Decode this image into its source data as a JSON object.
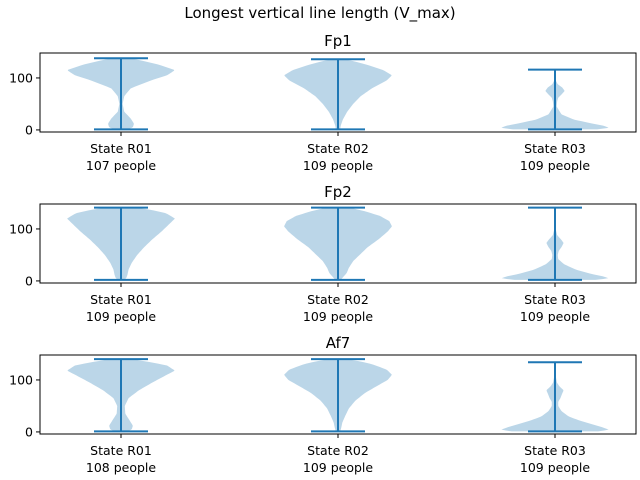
{
  "chart_data": {
    "type": "violin",
    "title": "Longest vertical line length (V_max)",
    "panels": [
      {
        "title": "Fp1",
        "ylim": [
          -4,
          148
        ],
        "yticks": [
          0,
          100
        ],
        "groups": [
          {
            "label": "State R01",
            "count_label": "107 people",
            "min": 1,
            "max": 138,
            "density": [
              [
                1,
                0.12
              ],
              [
                5,
                0.22
              ],
              [
                12,
                0.24
              ],
              [
                22,
                0.18
              ],
              [
                35,
                0.06
              ],
              [
                50,
                0.03
              ],
              [
                65,
                0.06
              ],
              [
                80,
                0.18
              ],
              [
                95,
                0.55
              ],
              [
                105,
                0.85
              ],
              [
                115,
                1.0
              ],
              [
                125,
                0.72
              ],
              [
                133,
                0.4
              ],
              [
                138,
                0.18
              ]
            ]
          },
          {
            "label": "State R02",
            "count_label": "109 people",
            "min": 1,
            "max": 136,
            "density": [
              [
                1,
                0.04
              ],
              [
                8,
                0.05
              ],
              [
                20,
                0.09
              ],
              [
                35,
                0.17
              ],
              [
                50,
                0.28
              ],
              [
                65,
                0.42
              ],
              [
                80,
                0.63
              ],
              [
                95,
                0.9
              ],
              [
                105,
                1.0
              ],
              [
                115,
                0.84
              ],
              [
                125,
                0.55
              ],
              [
                132,
                0.3
              ],
              [
                136,
                0.12
              ]
            ]
          },
          {
            "label": "State R03",
            "count_label": "109 people",
            "min": 1,
            "max": 116,
            "density": [
              [
                1,
                0.78
              ],
              [
                4,
                1.0
              ],
              [
                8,
                0.9
              ],
              [
                13,
                0.65
              ],
              [
                20,
                0.35
              ],
              [
                30,
                0.12
              ],
              [
                45,
                0.03
              ],
              [
                55,
                0.04
              ],
              [
                62,
                0.06
              ],
              [
                68,
                0.12
              ],
              [
                75,
                0.18
              ],
              [
                82,
                0.13
              ],
              [
                88,
                0.05
              ],
              [
                95,
                0.015
              ],
              [
                105,
                0.006
              ],
              [
                116,
                0.003
              ]
            ]
          }
        ]
      },
      {
        "title": "Fp2",
        "ylim": [
          -4,
          148
        ],
        "yticks": [
          0,
          100
        ],
        "groups": [
          {
            "label": "State R01",
            "count_label": "109 people",
            "min": 2,
            "max": 141,
            "density": [
              [
                2,
                0.06
              ],
              [
                6,
                0.1
              ],
              [
                12,
                0.12
              ],
              [
                22,
                0.14
              ],
              [
                35,
                0.2
              ],
              [
                50,
                0.3
              ],
              [
                65,
                0.43
              ],
              [
                80,
                0.58
              ],
              [
                95,
                0.75
              ],
              [
                110,
                0.9
              ],
              [
                120,
                1.0
              ],
              [
                130,
                0.84
              ],
              [
                137,
                0.55
              ],
              [
                141,
                0.25
              ]
            ]
          },
          {
            "label": "State R02",
            "count_label": "109 people",
            "min": 2,
            "max": 141,
            "density": [
              [
                2,
                0.05
              ],
              [
                8,
                0.1
              ],
              [
                15,
                0.16
              ],
              [
                25,
                0.2
              ],
              [
                38,
                0.28
              ],
              [
                50,
                0.4
              ],
              [
                65,
                0.55
              ],
              [
                80,
                0.75
              ],
              [
                95,
                0.92
              ],
              [
                105,
                1.0
              ],
              [
                115,
                0.95
              ],
              [
                125,
                0.78
              ],
              [
                134,
                0.5
              ],
              [
                141,
                0.22
              ]
            ]
          },
          {
            "label": "State R03",
            "count_label": "109 people",
            "min": 2,
            "max": 141,
            "density": [
              [
                2,
                0.75
              ],
              [
                5,
                1.0
              ],
              [
                9,
                0.88
              ],
              [
                14,
                0.65
              ],
              [
                22,
                0.38
              ],
              [
                32,
                0.17
              ],
              [
                42,
                0.06
              ],
              [
                50,
                0.05
              ],
              [
                58,
                0.07
              ],
              [
                65,
                0.12
              ],
              [
                73,
                0.16
              ],
              [
                80,
                0.11
              ],
              [
                88,
                0.04
              ],
              [
                100,
                0.012
              ],
              [
                120,
                0.004
              ],
              [
                141,
                0.002
              ]
            ]
          }
        ]
      },
      {
        "title": "Af7",
        "ylim": [
          -4,
          148
        ],
        "yticks": [
          0,
          100
        ],
        "groups": [
          {
            "label": "State R01",
            "count_label": "108 people",
            "min": 1,
            "max": 140,
            "density": [
              [
                1,
                0.12
              ],
              [
                5,
                0.2
              ],
              [
                12,
                0.22
              ],
              [
                22,
                0.16
              ],
              [
                35,
                0.08
              ],
              [
                50,
                0.07
              ],
              [
                65,
                0.14
              ],
              [
                80,
                0.33
              ],
              [
                95,
                0.58
              ],
              [
                110,
                0.85
              ],
              [
                118,
                1.0
              ],
              [
                128,
                0.85
              ],
              [
                135,
                0.5
              ],
              [
                140,
                0.2
              ]
            ]
          },
          {
            "label": "State R02",
            "count_label": "109 people",
            "min": 1,
            "max": 140,
            "density": [
              [
                1,
                0.04
              ],
              [
                8,
                0.06
              ],
              [
                18,
                0.08
              ],
              [
                30,
                0.13
              ],
              [
                45,
                0.2
              ],
              [
                60,
                0.32
              ],
              [
                75,
                0.5
              ],
              [
                90,
                0.75
              ],
              [
                100,
                0.92
              ],
              [
                110,
                1.0
              ],
              [
                120,
                0.9
              ],
              [
                130,
                0.64
              ],
              [
                136,
                0.4
              ],
              [
                140,
                0.15
              ]
            ]
          },
          {
            "label": "State R03",
            "count_label": "109 people",
            "min": 1,
            "max": 134,
            "density": [
              [
                1,
                0.8
              ],
              [
                4,
                1.0
              ],
              [
                9,
                0.88
              ],
              [
                15,
                0.68
              ],
              [
                22,
                0.45
              ],
              [
                30,
                0.25
              ],
              [
                40,
                0.12
              ],
              [
                50,
                0.06
              ],
              [
                58,
                0.06
              ],
              [
                65,
                0.1
              ],
              [
                73,
                0.13
              ],
              [
                80,
                0.16
              ],
              [
                88,
                0.08
              ],
              [
                95,
                0.035
              ],
              [
                110,
                0.01
              ],
              [
                134,
                0.003
              ]
            ]
          }
        ]
      }
    ]
  }
}
